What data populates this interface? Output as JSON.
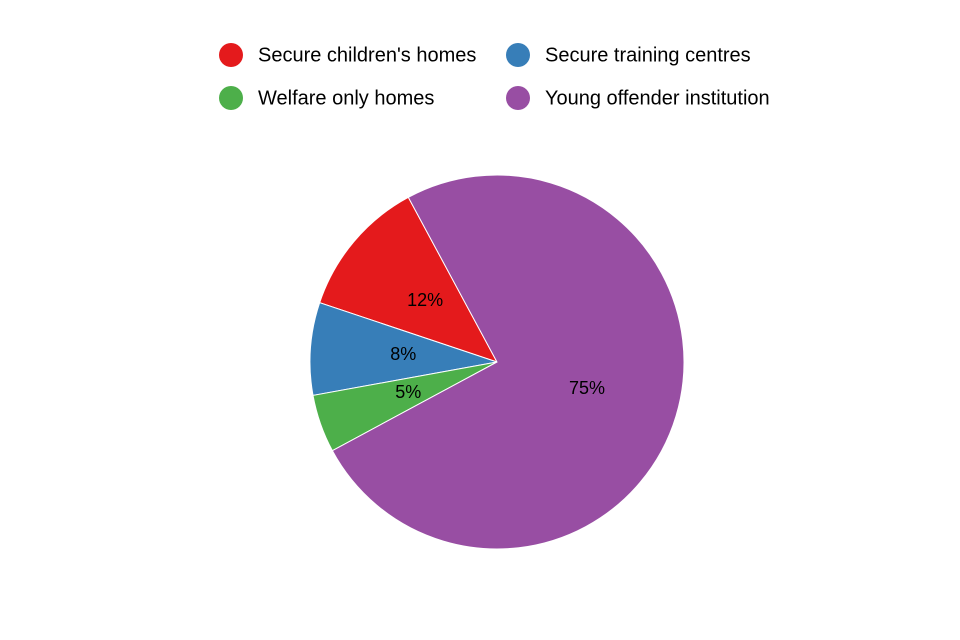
{
  "chart_data": {
    "type": "pie",
    "categories": [
      "Secure children's homes",
      "Secure training centres",
      "Welfare only homes",
      "Young offender institution"
    ],
    "values": [
      12,
      8,
      5,
      75
    ],
    "value_labels": [
      "12%",
      "8%",
      "5%",
      "75%"
    ],
    "colors": [
      "#e41a1c",
      "#377eb8",
      "#4daf4a",
      "#984ea3"
    ],
    "legend": "top"
  }
}
